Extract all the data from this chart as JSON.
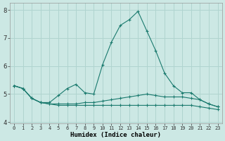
{
  "xlabel": "Humidex (Indice chaleur)",
  "xlim": [
    -0.5,
    23.5
  ],
  "ylim": [
    3.95,
    8.25
  ],
  "yticks": [
    4,
    5,
    6,
    7,
    8
  ],
  "xticks": [
    0,
    1,
    2,
    3,
    4,
    5,
    6,
    7,
    8,
    9,
    10,
    11,
    12,
    13,
    14,
    15,
    16,
    17,
    18,
    19,
    20,
    21,
    22,
    23
  ],
  "bg_color": "#cce8e4",
  "grid_color": "#b0d4cf",
  "line_color": "#1a7a6e",
  "series1_x": [
    0,
    1,
    2,
    3,
    4,
    5,
    6,
    7,
    8,
    9,
    10,
    11,
    12,
    13,
    14,
    15,
    16,
    17,
    18,
    19,
    20,
    21,
    22,
    23
  ],
  "series1_y": [
    5.3,
    5.2,
    4.85,
    4.7,
    4.7,
    4.95,
    5.2,
    5.35,
    5.05,
    5.0,
    6.05,
    6.85,
    7.45,
    7.65,
    7.95,
    7.25,
    6.55,
    5.75,
    5.3,
    5.05,
    5.05,
    4.8,
    4.65,
    4.55
  ],
  "series2_x": [
    0,
    1,
    2,
    3,
    4,
    5,
    6,
    7,
    8,
    9,
    10,
    11,
    12,
    13,
    14,
    15,
    16,
    17,
    18,
    19,
    20,
    21,
    22,
    23
  ],
  "series2_y": [
    5.3,
    5.2,
    4.85,
    4.7,
    4.65,
    4.65,
    4.65,
    4.65,
    4.7,
    4.7,
    4.75,
    4.8,
    4.85,
    4.9,
    4.95,
    5.0,
    4.95,
    4.9,
    4.9,
    4.9,
    4.85,
    4.8,
    4.65,
    4.55
  ],
  "series3_x": [
    0,
    1,
    2,
    3,
    4,
    5,
    6,
    7,
    8,
    9,
    10,
    11,
    12,
    13,
    14,
    15,
    16,
    17,
    18,
    19,
    20,
    21,
    22,
    23
  ],
  "series3_y": [
    5.3,
    5.2,
    4.85,
    4.7,
    4.65,
    4.6,
    4.6,
    4.6,
    4.6,
    4.6,
    4.6,
    4.6,
    4.6,
    4.6,
    4.6,
    4.6,
    4.6,
    4.6,
    4.6,
    4.6,
    4.6,
    4.55,
    4.5,
    4.45
  ]
}
